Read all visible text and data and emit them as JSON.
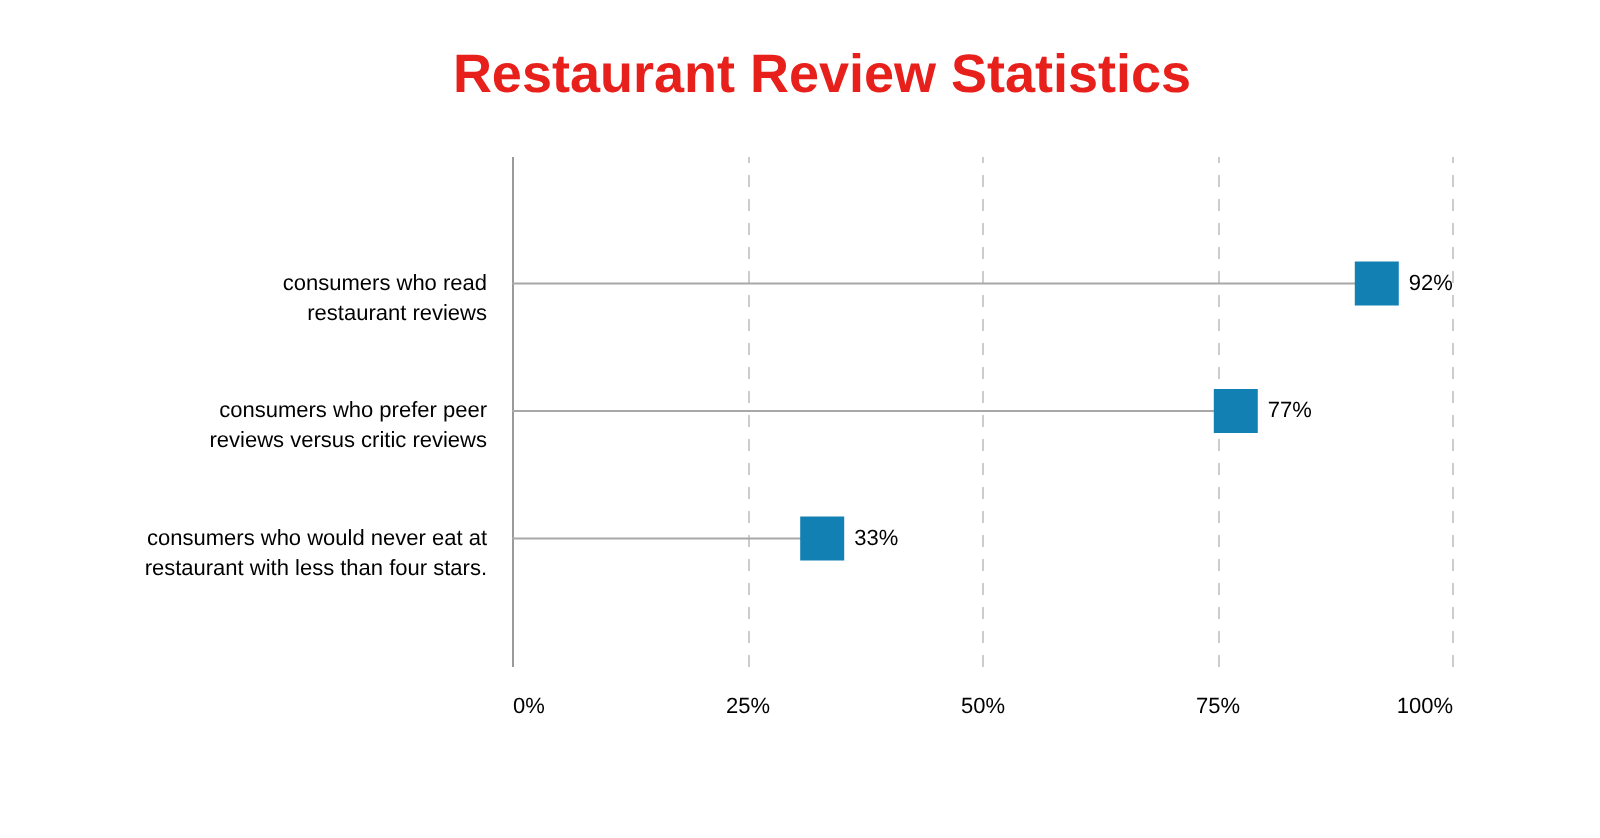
{
  "chart_data": {
    "type": "lollipop",
    "title": "Restaurant Review Statistics",
    "orientation": "horizontal",
    "marker": "square",
    "grid": "x",
    "categories": [
      "consumers who read restaurant reviews",
      "consumers who prefer peer reviews versus critic reviews",
      "consumers who would never eat at restaurant with less than four stars."
    ],
    "values": [
      92,
      77,
      33
    ],
    "value_labels": [
      "92%",
      "77%",
      "33%"
    ],
    "color": "#1380b4",
    "xlim": [
      0,
      100
    ],
    "xticks": [
      {
        "value": 0,
        "label": "0%"
      },
      {
        "value": 25,
        "label": "25%"
      },
      {
        "value": 50,
        "label": "50%"
      },
      {
        "value": 75,
        "label": "75%"
      },
      {
        "value": 100,
        "label": "100%"
      }
    ]
  }
}
